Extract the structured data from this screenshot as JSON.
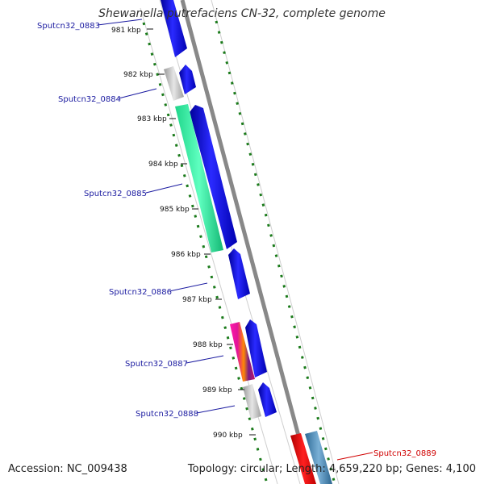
{
  "title": "Shewanella putrefaciens CN-32, complete genome",
  "footer": {
    "accession": "Accession: NC_009438",
    "summary": "Topology: circular; Length: 4,659,220 bp; Genes: 4,100"
  },
  "colors": {
    "backbone": "#888888",
    "ruler": "#1a7a1a",
    "forward_cds": "#1010e0",
    "gene_label": "#1a1aa0",
    "highlight_label": "#d00000",
    "ticks": "#111111"
  },
  "scale_ticks": [
    "981 kbp",
    "982 kbp",
    "983 kbp",
    "984 kbp",
    "985 kbp",
    "986 kbp",
    "987 kbp",
    "988 kbp",
    "989 kbp",
    "990 kbp"
  ],
  "gene_labels": [
    {
      "text": "Sputcn32_0883",
      "color": "#1a1aa0"
    },
    {
      "text": "Sputcn32_0884",
      "color": "#1a1aa0"
    },
    {
      "text": "Sputcn32_0885",
      "color": "#1a1aa0"
    },
    {
      "text": "Sputcn32_0886",
      "color": "#1a1aa0"
    },
    {
      "text": "Sputcn32_0887",
      "color": "#1a1aa0"
    },
    {
      "text": "Sputcn32_0888",
      "color": "#1a1aa0"
    },
    {
      "text": "Sputcn32_0889",
      "color": "#d00000"
    }
  ]
}
